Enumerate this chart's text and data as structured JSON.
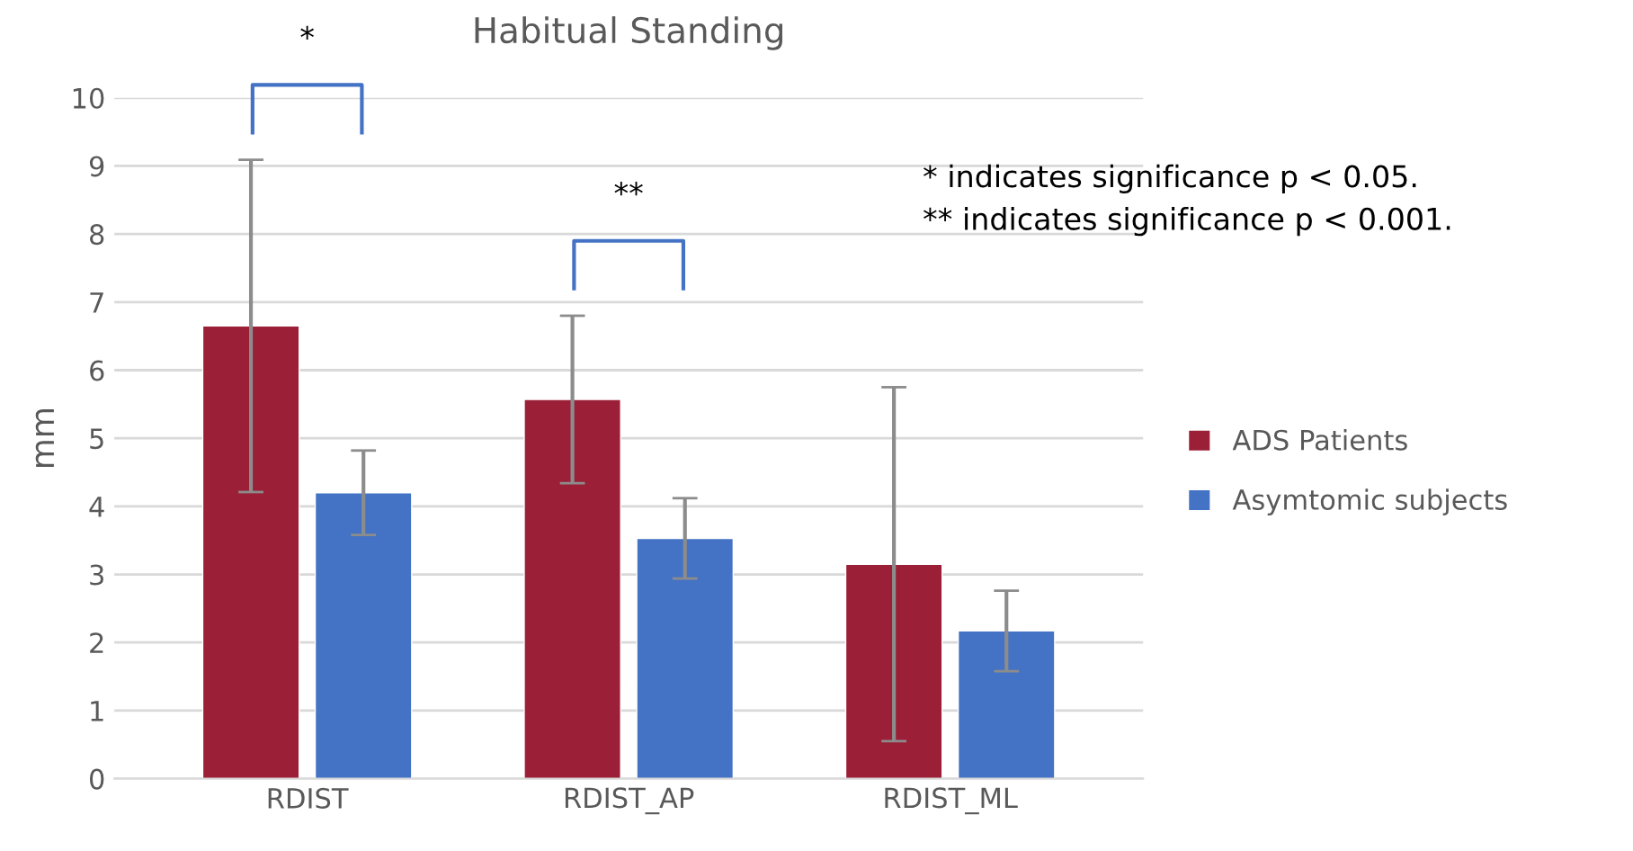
{
  "chart_data": {
    "type": "bar",
    "title": "Habitual Standing",
    "ylabel": "mm",
    "categories": [
      "RDIST",
      "RDIST_AP",
      "RDIST_ML"
    ],
    "series": [
      {
        "name": "ADS Patients",
        "color": "#9b1f36",
        "values": [
          6.65,
          5.57,
          3.15
        ],
        "errors": [
          2.44,
          1.23,
          2.6
        ]
      },
      {
        "name": "Asymtomic subjects",
        "color": "#4472c4",
        "values": [
          4.2,
          3.53,
          2.17
        ],
        "errors": [
          0.62,
          0.59,
          0.59
        ]
      }
    ],
    "annotations": [
      "*",
      "**",
      "* indicates significance p < 0.05.",
      "** indicates significance p < 0.001."
    ],
    "ylim": [
      0,
      10
    ],
    "yticks": [
      0,
      1,
      2,
      3,
      4,
      5,
      6,
      7,
      8,
      9,
      10
    ],
    "grid": "y",
    "legend": "right"
  }
}
